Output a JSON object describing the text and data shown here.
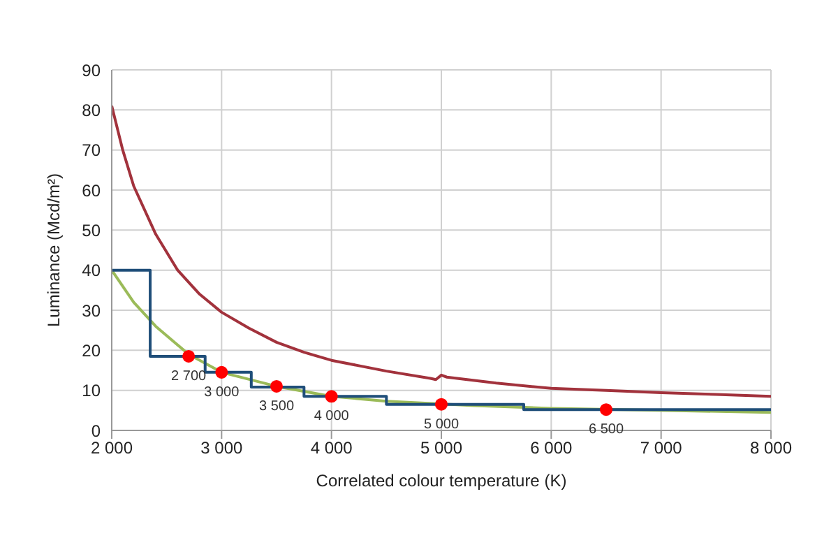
{
  "chart_data": {
    "type": "line",
    "xlabel": "Correlated colour temperature  (K)",
    "ylabel": "Luminance (Mcd/m²)",
    "xlim": [
      2000,
      8000
    ],
    "xticks": [
      {
        "value": 2000,
        "label": "2 000"
      },
      {
        "value": 3000,
        "label": "3 000"
      },
      {
        "value": 4000,
        "label": "4 000"
      },
      {
        "value": 5000,
        "label": "5 000"
      },
      {
        "value": 6000,
        "label": "6 000"
      },
      {
        "value": 7000,
        "label": "7 000"
      },
      {
        "value": 8000,
        "label": "8 000"
      }
    ],
    "ylim": [
      0,
      90
    ],
    "yticks": [
      0,
      10,
      20,
      30,
      40,
      50,
      60,
      70,
      80,
      90
    ],
    "grid": true,
    "annotations": [
      {
        "text": "2 700",
        "x": 2700,
        "y": 18.5
      },
      {
        "text": "3 000",
        "x": 3000,
        "y": 14.5
      },
      {
        "text": "3 500",
        "x": 3500,
        "y": 11
      },
      {
        "text": "4 000",
        "x": 4000,
        "y": 8.5
      },
      {
        "text": "5 000",
        "x": 5000,
        "y": 6.5
      },
      {
        "text": "6 500",
        "x": 6500,
        "y": 5.2
      }
    ],
    "series": [
      {
        "color": "#a2323c",
        "marker": "none",
        "x": [
          2000,
          2100,
          2200,
          2400,
          2600,
          2800,
          3000,
          3250,
          3500,
          3750,
          4000,
          4500,
          4900,
          4950,
          5000,
          5050,
          5500,
          6000,
          6500,
          7000,
          7500,
          8000
        ],
        "values": [
          81,
          70,
          61,
          49,
          40,
          34,
          29.5,
          25.5,
          22,
          19.5,
          17.5,
          14.8,
          13,
          12.7,
          13.8,
          13.3,
          11.8,
          10.5,
          10,
          9.4,
          9,
          8.5
        ]
      },
      {
        "color": "#9bbb59",
        "marker": "none",
        "x": [
          2000,
          2200,
          2400,
          2700,
          3000,
          3500,
          4000,
          4500,
          5300,
          6000,
          7000,
          8000
        ],
        "values": [
          40,
          32,
          26,
          19,
          14.5,
          11,
          8.5,
          7.3,
          6.2,
          5.5,
          5,
          4.5
        ]
      },
      {
        "type": "step",
        "color": "#1f4e79",
        "marker": "none",
        "x": [
          2000,
          2350,
          2850,
          3270,
          3750,
          4500,
          5750,
          8000
        ],
        "values": [
          40,
          18.5,
          14.5,
          10.8,
          8.5,
          6.5,
          5.2,
          5.2
        ]
      },
      {
        "type": "scatter",
        "color": "#ff0000",
        "marker": "circle",
        "x": [
          2700,
          3000,
          3500,
          4000,
          5000,
          6500
        ],
        "values": [
          18.5,
          14.5,
          11,
          8.5,
          6.5,
          5.2
        ]
      }
    ]
  }
}
